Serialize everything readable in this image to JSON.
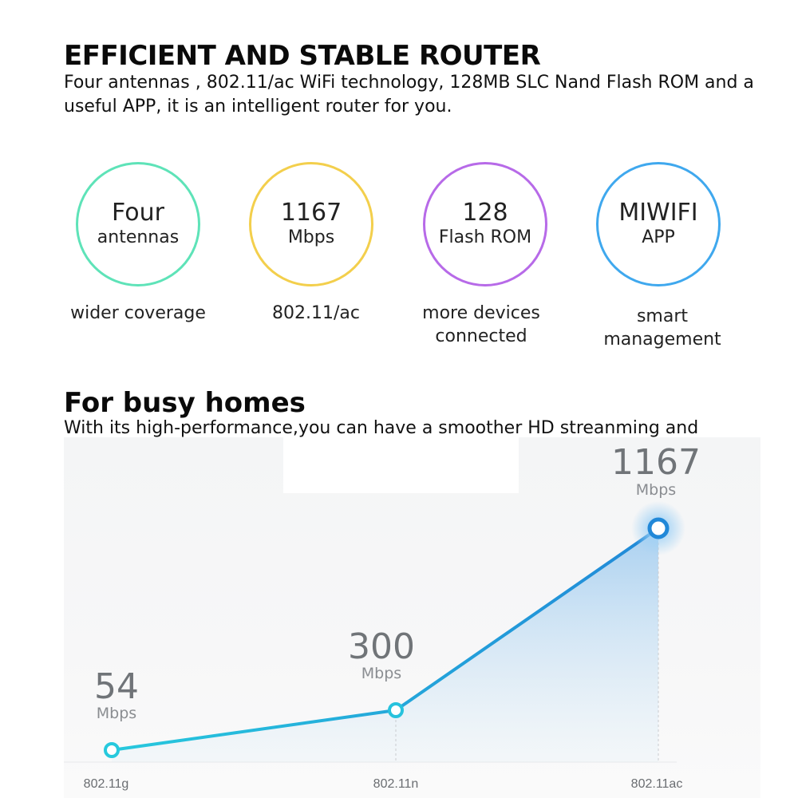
{
  "header": {
    "title": "EFFICIENT AND STABLE ROUTER",
    "intro": "Four antennas  , 802.11/ac WiFi technology, 128MB SLC Nand Flash ROM and a useful APP, it is an intelligent router for you."
  },
  "features": [
    {
      "big": "Four",
      "small": "antennas",
      "caption_1": "wider coverage",
      "caption_2": "",
      "color": "#5ee3b8"
    },
    {
      "big": "1167",
      "small": "Mbps",
      "caption_1": "802.11/ac",
      "caption_2": "",
      "color": "#f3cf4c"
    },
    {
      "big": "128",
      "small": "Flash ROM",
      "caption_1": "more devices",
      "caption_2": "connected",
      "color": "#b76ae8"
    },
    {
      "big": "MIWIFI",
      "small": "APP",
      "caption_1": "smart",
      "caption_2": "management",
      "color": "#3fa8ee"
    }
  ],
  "section2": {
    "title": "For busy homes",
    "subtitle": "With its high-performance,you can have a smoother HD streanming and"
  },
  "chart_data": {
    "type": "line",
    "categories": [
      "802.11g",
      "802.11n",
      "802.11ac"
    ],
    "values": [
      54,
      300,
      1167
    ],
    "unit": "Mbps",
    "line_color_start": "#27c9dd",
    "line_color_end": "#2188d8",
    "grid": false
  }
}
